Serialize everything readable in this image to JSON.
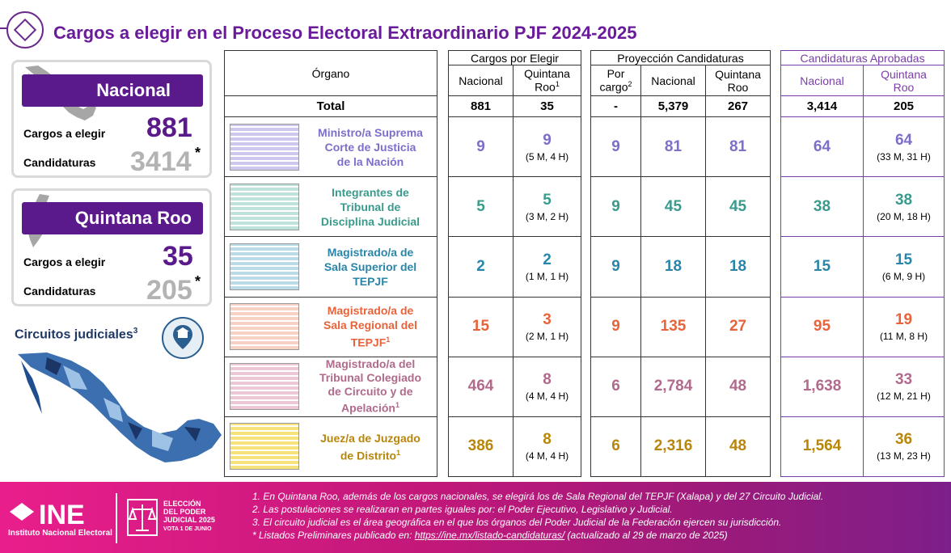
{
  "title": "Cargos a elegir en el Proceso Electoral Extraordinario PJF 2024-2025",
  "nacional": {
    "banner": "Nacional",
    "cargos_label": "Cargos a elegir",
    "cargos_value": "881",
    "cand_label": "Candidaturas",
    "cand_value": "3414",
    "asterisk": "*"
  },
  "quintana_roo": {
    "banner": "Quintana Roo",
    "cargos_label": "Cargos a elegir",
    "cargos_value": "35",
    "cand_label": "Candidaturas",
    "cand_value": "205",
    "asterisk": "*"
  },
  "circuitos": {
    "label": "Circuitos judiciales",
    "sup": "3"
  },
  "table": {
    "organo_header": "Órgano",
    "cargos_header": "Cargos por Elegir",
    "proy_header": "Proyección Candidaturas",
    "aprob_header": "Candidaturas Aprobadas",
    "col_nacional": "Nacional",
    "col_qroo_l1": "Quintana",
    "col_qroo_l2": "Roo",
    "col_qroo_sup": "1",
    "col_porcargo_l1": "Por",
    "col_porcargo_l2": "cargo",
    "col_porcargo_sup": "2",
    "total": {
      "label": "Total",
      "cargos_nac": "881",
      "cargos_qroo": "35",
      "proy_porcargo": "-",
      "proy_nac": "5,379",
      "proy_qroo": "267",
      "aprob_nac": "3,414",
      "aprob_qroo": "205"
    },
    "rows": [
      {
        "name_lines": [
          "Ministro/a Suprema",
          "Corte de Justicia",
          "de la Nación"
        ],
        "sup": "",
        "cargos_nac": "9",
        "cargos_qroo": "9",
        "cargos_qroo_sub": "(5 M, 4 H)",
        "proy_porcargo": "9",
        "proy_nac": "81",
        "proy_qroo": "81",
        "aprob_nac": "64",
        "aprob_qroo": "64",
        "aprob_qroo_sub": "(33 M, 31 H)",
        "color": "#7b6fc9",
        "thumb_color": "#cfc8ee"
      },
      {
        "name_lines": [
          "Integrantes de",
          "Tribunal de",
          "Disciplina Judicial"
        ],
        "sup": "",
        "cargos_nac": "5",
        "cargos_qroo": "5",
        "cargos_qroo_sub": "(3 M, 2 H)",
        "proy_porcargo": "9",
        "proy_nac": "45",
        "proy_qroo": "45",
        "aprob_nac": "38",
        "aprob_qroo": "38",
        "aprob_qroo_sub": "(20 M, 18 H)",
        "color": "#3a9a8c",
        "thumb_color": "#bfe3dc"
      },
      {
        "name_lines": [
          "Magistrado/a de",
          "Sala Superior del",
          "TEPJF"
        ],
        "sup": "",
        "cargos_nac": "2",
        "cargos_qroo": "2",
        "cargos_qroo_sub": "(1 M, 1 H)",
        "proy_porcargo": "9",
        "proy_nac": "18",
        "proy_qroo": "18",
        "aprob_nac": "15",
        "aprob_qroo": "15",
        "aprob_qroo_sub": "(6 M, 9 H)",
        "color": "#2a86a8",
        "thumb_color": "#bcdbe8"
      },
      {
        "name_lines": [
          "Magistrado/a de",
          "Sala Regional del",
          "TEPJF"
        ],
        "sup": "1",
        "cargos_nac": "15",
        "cargos_qroo": "3",
        "cargos_qroo_sub": "(2 M, 1 H)",
        "proy_porcargo": "9",
        "proy_nac": "135",
        "proy_qroo": "27",
        "aprob_nac": "95",
        "aprob_qroo": "19",
        "aprob_qroo_sub": "(11 M, 8 H)",
        "color": "#e8633a",
        "thumb_color": "#f7d2c4"
      },
      {
        "name_lines": [
          "Magistrado/a del",
          "Tribunal Colegiado",
          "de Circuito y de",
          "Apelación"
        ],
        "sup": "1",
        "cargos_nac": "464",
        "cargos_qroo": "8",
        "cargos_qroo_sub": "(4 M, 4 H)",
        "proy_porcargo": "6",
        "proy_nac": "2,784",
        "proy_qroo": "48",
        "aprob_nac": "1,638",
        "aprob_qroo": "33",
        "aprob_qroo_sub": "(12 M, 21 H)",
        "color": "#b06a8c",
        "thumb_color": "#ecc7d6"
      },
      {
        "name_lines": [
          "Juez/a de Juzgado",
          "de Distrito"
        ],
        "sup": "1",
        "cargos_nac": "386",
        "cargos_qroo": "8",
        "cargos_qroo_sub": "(4 M, 4 H)",
        "proy_porcargo": "6",
        "proy_nac": "2,316",
        "proy_qroo": "48",
        "aprob_nac": "1,564",
        "aprob_qroo": "36",
        "aprob_qroo_sub": "(13 M, 23 H)",
        "color": "#b8860b",
        "thumb_color": "#f5e27a"
      }
    ]
  },
  "footer": {
    "ine_logo": "INE",
    "ine_sub": "Instituto Nacional Electoral",
    "eleccion_l1": "ELECCIÓN",
    "eleccion_l2": "DEL PODER",
    "eleccion_l3": "JUDICIAL 2025",
    "eleccion_l4": "VOTA 1 DE JUNIO",
    "note1": "1. En Quintana Roo, además de los cargos nacionales, se elegirá los de Sala Regional del TEPJF (Xalapa) y del 27 Circuito Judicial.",
    "note2": "2. Las postulaciones se realizaran en partes iguales por: el Poder Ejecutivo, Legislativo y Judicial.",
    "note3": "3. El circuito judicial es el área geográfica en el que los órganos del Poder Judicial de la Federación ejercen su jurisdicción.",
    "note4_prefix": "* Listados Preliminares publicado en: ",
    "note4_link": "https://ine.mx/listado-candidaturas/",
    "note4_suffix": "  (actualizado al 29 de marzo de 2025)"
  }
}
